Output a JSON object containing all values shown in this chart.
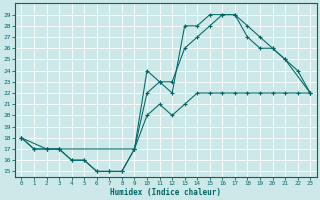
{
  "xlabel": "Humidex (Indice chaleur)",
  "bg_color": "#cce8e8",
  "grid_color": "#aadddd",
  "line_color": "#006666",
  "xlim": [
    -0.5,
    23.5
  ],
  "ylim": [
    14.5,
    30.0
  ],
  "xticks": [
    0,
    1,
    2,
    3,
    4,
    5,
    6,
    7,
    8,
    9,
    10,
    11,
    12,
    13,
    14,
    15,
    16,
    17,
    18,
    19,
    20,
    21,
    22,
    23
  ],
  "yticks": [
    15,
    16,
    17,
    18,
    19,
    20,
    21,
    22,
    23,
    24,
    25,
    26,
    27,
    28,
    29
  ],
  "curve_min_x": [
    0,
    1,
    2,
    3,
    4,
    5,
    6,
    7,
    8,
    9,
    10,
    11,
    12,
    13,
    14,
    15,
    16,
    17,
    18,
    19,
    20,
    21,
    22,
    23
  ],
  "curve_min_y": [
    18,
    17,
    17,
    17,
    16,
    16,
    15,
    15,
    15,
    17,
    20,
    21,
    20,
    21,
    22,
    22,
    22,
    22,
    22,
    22,
    22,
    22,
    22,
    22
  ],
  "curve_max_x": [
    0,
    1,
    2,
    3,
    4,
    5,
    6,
    7,
    8,
    9,
    10,
    11,
    12,
    13,
    14,
    15,
    16,
    17,
    18,
    19,
    20,
    21,
    22,
    23
  ],
  "curve_max_y": [
    18,
    17,
    17,
    17,
    16,
    16,
    15,
    15,
    15,
    17,
    22,
    23,
    23,
    26,
    27,
    28,
    29,
    29,
    28,
    27,
    26,
    25,
    24,
    22
  ],
  "curve_mid_x": [
    0,
    2,
    3,
    9,
    10,
    11,
    12,
    13,
    14,
    15,
    16,
    17,
    18,
    19,
    20,
    21,
    23
  ],
  "curve_mid_y": [
    18,
    17,
    17,
    17,
    24,
    23,
    22,
    28,
    28,
    29,
    29,
    29,
    27,
    26,
    26,
    25,
    22
  ]
}
